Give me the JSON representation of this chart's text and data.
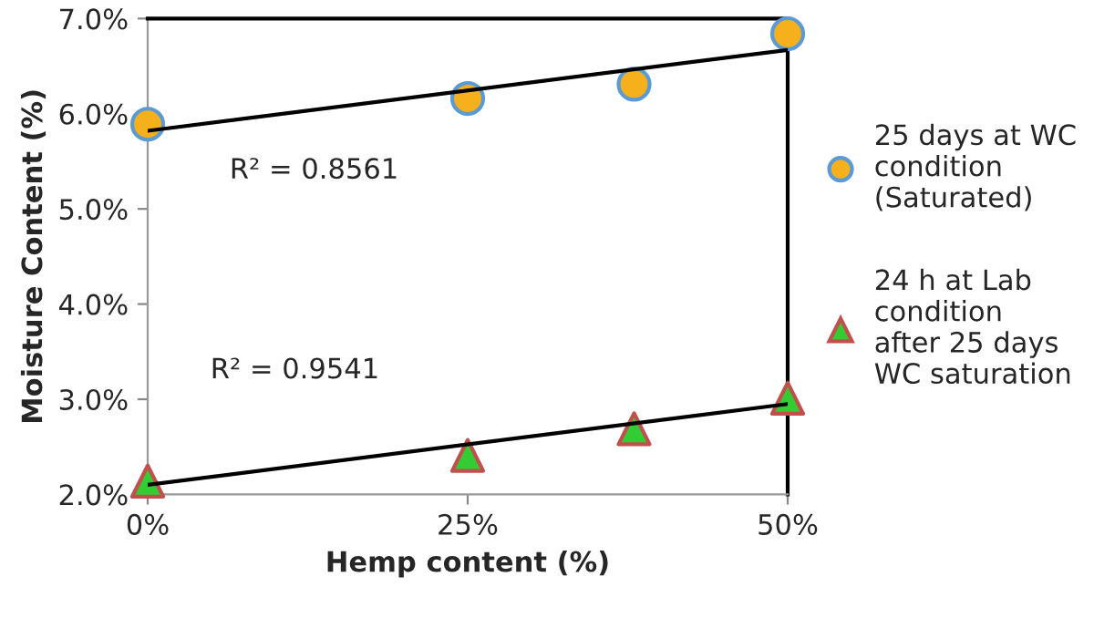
{
  "chart_data": {
    "type": "scatter",
    "xlabel": "Hemp content (%)",
    "ylabel": "Moisture Content (%)",
    "xlim": [
      0,
      50
    ],
    "xticks": [
      {
        "value": 0,
        "label": "0%"
      },
      {
        "value": 25,
        "label": "25%"
      },
      {
        "value": 50,
        "label": "50%"
      }
    ],
    "ylim": [
      2,
      7
    ],
    "yticks": [
      {
        "value": 2,
        "label": "2.0%"
      },
      {
        "value": 3,
        "label": "3.0%"
      },
      {
        "value": 4,
        "label": "4.0%"
      },
      {
        "value": 5,
        "label": "5.0%"
      },
      {
        "value": 6,
        "label": "6.0%"
      },
      {
        "value": 7,
        "label": "7.0%"
      }
    ],
    "grid": false,
    "legend": "right",
    "series": [
      {
        "name": "25 days at WC condition (Saturated)",
        "marker": "circle",
        "color": "#f5b01c",
        "x": [
          0,
          25,
          38,
          50
        ],
        "values": [
          5.89,
          6.16,
          6.31,
          6.84
        ]
      },
      {
        "name": "24 h at Lab condition after 25 days WC saturation",
        "marker": "triangle",
        "color": "#33cc33",
        "x": [
          0,
          25,
          38,
          50
        ],
        "values": [
          2.14,
          2.41,
          2.69,
          3.01
        ]
      },
      {
        "type": "line",
        "color": "#000000",
        "x": [
          0,
          50
        ],
        "values": [
          5.82,
          6.67
        ]
      },
      {
        "type": "line",
        "color": "#000000",
        "x": [
          0,
          50
        ],
        "values": [
          2.1,
          2.95
        ]
      }
    ],
    "annotations": [
      "R² = 0.8561",
      "R² = 0.9541"
    ]
  }
}
